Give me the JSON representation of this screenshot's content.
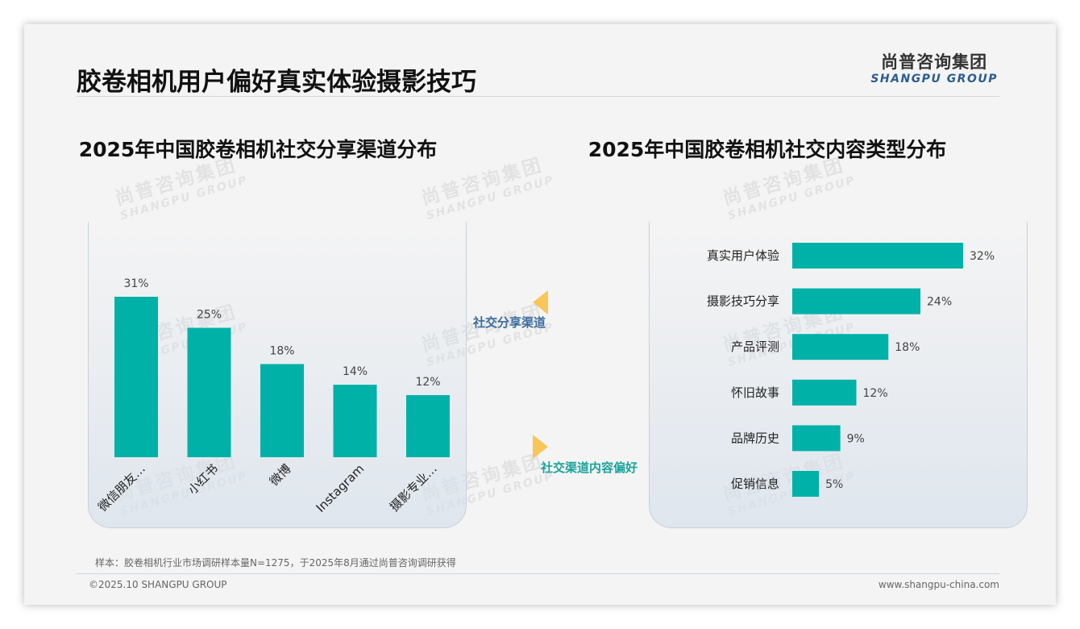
{
  "page": {
    "title": "胶卷相机用户偏好真实体验摄影技巧",
    "logo_cn": "尚普咨询集团",
    "logo_en": "SHANGPU GROUP",
    "watermark_cn": "尚普咨询集团",
    "watermark_en": "SHANGPU GROUP",
    "flow_label_1": "社交分享渠道",
    "flow_label_2": "社交渠道内容偏好",
    "footnote": "样本：胶卷相机行业市场调研样本量N=1275，于2025年8月通过尚普咨询调研获得",
    "copyright": "©2025.10 SHANGPU GROUP",
    "website": "www.shangpu-china.com",
    "colors": {
      "bar": "#00b1a8",
      "arrow": "#f8c659",
      "label_blue": "#3d6c9e",
      "label_teal": "#1aa39b"
    }
  },
  "chart_data": [
    {
      "type": "bar",
      "title": "2025年中国胶卷相机社交分享渠道分布",
      "categories": [
        "微信朋友…",
        "小红书",
        "微博",
        "Instagram",
        "摄影专业…"
      ],
      "values": [
        31,
        25,
        18,
        14,
        12
      ],
      "value_labels": [
        "31%",
        "25%",
        "18%",
        "14%",
        "12%"
      ],
      "unit": "%",
      "ylim": [
        0,
        31
      ],
      "grid": false,
      "axis_visible": false
    },
    {
      "type": "bar",
      "orientation": "horizontal",
      "title": "2025年中国胶卷相机社交内容类型分布",
      "categories": [
        "真实用户体验",
        "摄影技巧分享",
        "产品评测",
        "怀旧故事",
        "品牌历史",
        "促销信息"
      ],
      "values": [
        32,
        24,
        18,
        12,
        9,
        5
      ],
      "value_labels": [
        "32%",
        "24%",
        "18%",
        "12%",
        "9%",
        "5%"
      ],
      "unit": "%",
      "xlim": [
        0,
        32
      ],
      "grid": false,
      "axis_visible": false
    }
  ]
}
